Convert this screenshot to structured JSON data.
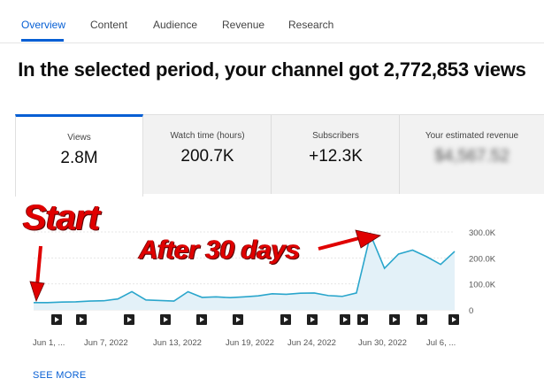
{
  "tabs": [
    {
      "label": "Overview",
      "active": true
    },
    {
      "label": "Content"
    },
    {
      "label": "Audience"
    },
    {
      "label": "Revenue"
    },
    {
      "label": "Research"
    }
  ],
  "headline": "In the selected period, your channel got 2,772,853 views",
  "metrics": [
    {
      "label": "Views",
      "value": "2.8M",
      "selected": true
    },
    {
      "label": "Watch time (hours)",
      "value": "200.7K"
    },
    {
      "label": "Subscribers",
      "value": "+12.3K"
    },
    {
      "label": "Your estimated revenue",
      "value": "$4,567.52",
      "blurred": true
    }
  ],
  "chart_data": {
    "type": "area",
    "series": [
      {
        "values": [
          28000,
          28000,
          30000,
          31000,
          34000,
          35000,
          42000,
          70000,
          38000,
          36000,
          34000,
          70000,
          48000,
          50000,
          47000,
          50000,
          54000,
          62000,
          60000,
          64000,
          65000,
          55000,
          52000,
          65000,
          290000,
          160000,
          215000,
          230000,
          205000,
          175000,
          225000
        ]
      }
    ],
    "x_tick_labels": [
      "Jun 1, ...",
      "Jun 7, 2022",
      "Jun 13, 2022",
      "Jun 19, 2022",
      "Jun 24, 2022",
      "Jun 30, 2022",
      "Jul 6, ..."
    ],
    "y_tick_labels": [
      "0",
      "100.0K",
      "200.0K",
      "300.0K"
    ],
    "ylim": [
      0,
      300000
    ],
    "line_color": "#2aa6cc",
    "fill_color": "#e3f1f8",
    "video_markers_count": 13
  },
  "annotations": {
    "start": "Start",
    "after": "After 30 days"
  },
  "see_more": "SEE MORE"
}
